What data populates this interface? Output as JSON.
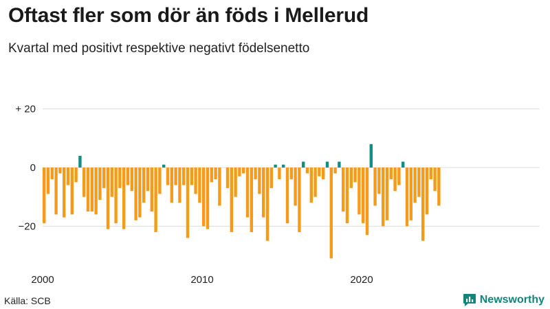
{
  "title": "Oftast fler som dör än föds i Mellerud",
  "subtitle": "Kvartal med positivt respektive negativt födelsenetto",
  "source": "Källa: SCB",
  "brand": {
    "name": "Newsworthy",
    "logo_icon": "newsworthy-chart-logo-icon"
  },
  "colors": {
    "positive": "#138e83",
    "negative": "#f59b1b",
    "grid": "#dddddd",
    "text": "#222222"
  },
  "chart_data": {
    "type": "bar",
    "title": "Oftast fler som dör än föds i Mellerud",
    "subtitle": "Kvartal med positivt respektive negativt födelsenetto",
    "xlabel": "",
    "ylabel": "",
    "grid": true,
    "ylim": [
      -32,
      20
    ],
    "y_ticks": [
      {
        "value": 20,
        "label": "+ 20"
      },
      {
        "value": 0,
        "label": "0"
      },
      {
        "value": -20,
        "label": "−20"
      }
    ],
    "x_ticks": [
      {
        "value": 2000,
        "label": "2000"
      },
      {
        "value": 2010,
        "label": "2010"
      },
      {
        "value": 2020,
        "label": "2020"
      }
    ],
    "x_start": 2000,
    "period": "quarter",
    "values": [
      -19,
      -9,
      -4,
      -16,
      -2,
      -17,
      -6,
      -16,
      -5,
      4,
      -10,
      -15,
      -15,
      -16,
      -11,
      -7,
      -21,
      -10,
      -19,
      -7,
      -21,
      -6,
      -8,
      -18,
      -17,
      -12,
      -8,
      -15,
      -22,
      -9,
      1,
      -6,
      -12,
      -6,
      -12,
      -6,
      -24,
      -6,
      -9,
      -12,
      -20,
      -21,
      -5,
      -4,
      -13,
      0,
      -7,
      -22,
      -10,
      -3,
      -2,
      -17,
      -22,
      -4,
      -9,
      -17,
      -25,
      -7,
      1,
      -4,
      1,
      -19,
      -4,
      -13,
      -22,
      2,
      -2,
      -12,
      -10,
      -3,
      -4,
      2,
      -31,
      -2,
      2,
      -15,
      -19,
      -7,
      -5,
      -16,
      -19,
      -23,
      8,
      -13,
      -9,
      -20,
      -18,
      -4,
      -8,
      -6,
      2,
      -20,
      -18,
      -12,
      -10,
      -25,
      -16,
      -4,
      -8,
      -13
    ]
  }
}
